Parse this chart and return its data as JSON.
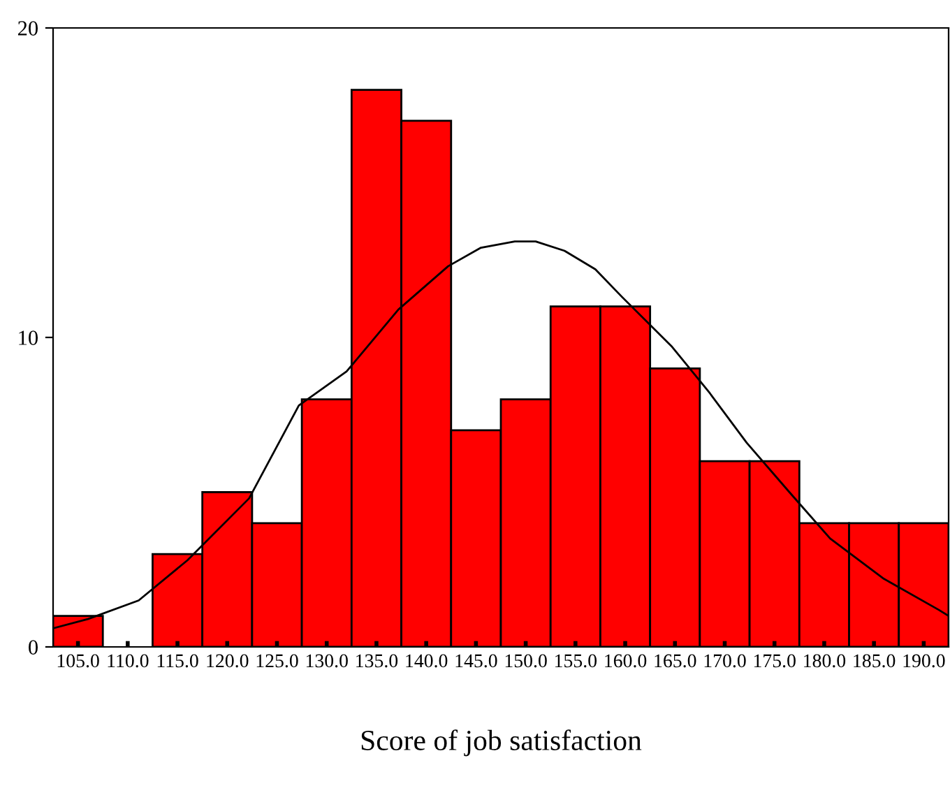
{
  "chart_data": {
    "type": "histogram",
    "xlabel": "Score of job satisfaction",
    "bins": [
      102.5,
      107.5,
      112.5,
      117.5,
      122.5,
      127.5,
      132.5,
      137.5,
      142.5,
      147.5,
      152.5,
      157.5,
      162.5,
      167.5,
      172.5,
      177.5,
      182.5,
      187.5,
      192.5
    ],
    "values": [
      1,
      0,
      3,
      5,
      4,
      8,
      18,
      17,
      7,
      8,
      11,
      11,
      9,
      6,
      6,
      4,
      4,
      4
    ],
    "color": "#ff0000",
    "series": [
      {
        "type": "line",
        "color": "#000000",
        "x": [
          102.5,
          106.0,
          111.1,
          116.0,
          122.2,
          127.2,
          132.0,
          137.2,
          142.2,
          145.5,
          148.9,
          151.0,
          153.9,
          157.0,
          159.7,
          164.7,
          168.5,
          172.2,
          176.5,
          180.6,
          186.0,
          191.5,
          192.5
        ],
        "values": [
          0.6,
          0.9,
          1.5,
          2.8,
          4.8,
          7.8,
          8.9,
          10.9,
          12.3,
          12.9,
          13.1,
          13.1,
          12.8,
          12.2,
          11.3,
          9.7,
          8.2,
          6.6,
          5.0,
          3.5,
          2.2,
          1.2,
          1.0
        ]
      }
    ],
    "xlim": [
      102.5,
      192.5
    ],
    "ylim": [
      0,
      20
    ],
    "xticks": [
      {
        "value": 105,
        "label": "105.0"
      },
      {
        "value": 110,
        "label": "110.0"
      },
      {
        "value": 115,
        "label": "115.0"
      },
      {
        "value": 120,
        "label": "120.0"
      },
      {
        "value": 125,
        "label": "125.0"
      },
      {
        "value": 130,
        "label": "130.0"
      },
      {
        "value": 135,
        "label": "135.0"
      },
      {
        "value": 140,
        "label": "140.0"
      },
      {
        "value": 145,
        "label": "145.0"
      },
      {
        "value": 150,
        "label": "150.0"
      },
      {
        "value": 155,
        "label": "155.0"
      },
      {
        "value": 160,
        "label": "160.0"
      },
      {
        "value": 165,
        "label": "165.0"
      },
      {
        "value": 170,
        "label": "170.0"
      },
      {
        "value": 175,
        "label": "175.0"
      },
      {
        "value": 180,
        "label": "180.0"
      },
      {
        "value": 185,
        "label": "185.0"
      },
      {
        "value": 190,
        "label": "190.0"
      }
    ],
    "yticks": [
      0,
      10,
      20
    ],
    "grid": false,
    "legend": false
  }
}
